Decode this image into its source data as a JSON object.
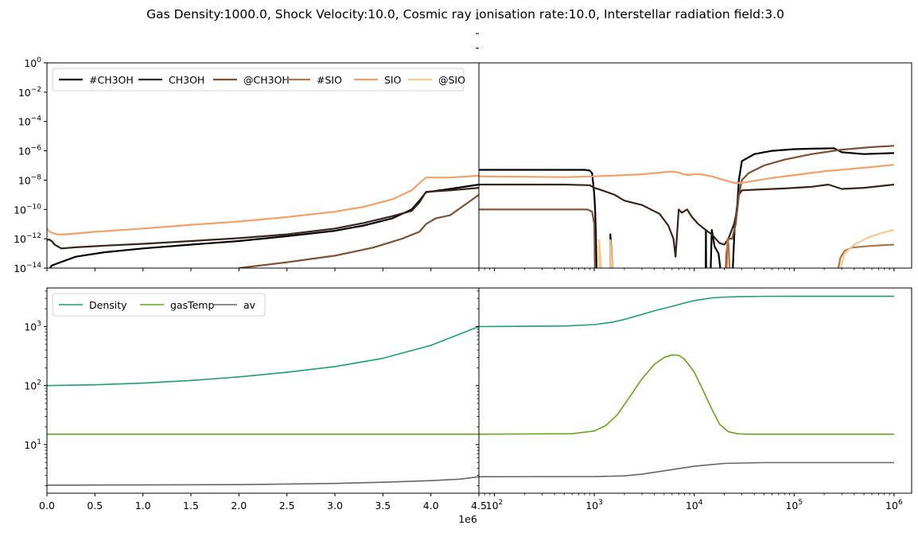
{
  "title": "Gas Density:1000.0, Shock Velocity:10.0, Cosmic ray ionisation rate:10.0, Interstellar radiation field:3.0",
  "chart_data": [
    {
      "id": "abundance-left",
      "type": "line",
      "x_scale": "linear",
      "y_scale": "log",
      "xlim": [
        0,
        4500000
      ],
      "ylim": [
        1e-14,
        1
      ],
      "x_offset_label": "1e6",
      "x_ticks": [
        0,
        500000,
        1000000,
        1500000,
        2000000,
        2500000,
        3000000,
        3500000,
        4000000,
        4500000
      ],
      "x_tick_labels": [
        "0.0",
        "0.5",
        "1.0",
        "1.5",
        "2.0",
        "2.5",
        "3.0",
        "3.5",
        "4.0",
        "4.5"
      ],
      "y_ticks": [
        1e-14,
        1e-12,
        1e-10,
        1e-08,
        1e-06,
        0.0001,
        0.01,
        1
      ],
      "y_tick_labels": [
        [
          "10",
          "−14"
        ],
        [
          "10",
          "−12"
        ],
        [
          "10",
          "−10"
        ],
        [
          "10",
          "−8"
        ],
        [
          "10",
          "−6"
        ],
        [
          "10",
          "−4"
        ],
        [
          "10",
          "−2"
        ],
        [
          "10",
          "0"
        ]
      ],
      "legend": {
        "placement": "upper-left",
        "ncol": 6
      },
      "series": [
        {
          "name": "#CH3OH",
          "color": "#000000",
          "x": [
            0,
            50000,
            100000,
            300000,
            600000,
            1000000,
            1500000,
            2000000,
            2500000,
            3000000,
            3300000,
            3600000,
            3800000,
            3880000,
            3950000,
            4200000,
            4500000
          ],
          "y": [
            5e-15,
            1.5e-14,
            2e-14,
            6e-14,
            1.2e-13,
            2.2e-13,
            4e-13,
            7e-13,
            1.5e-12,
            3.5e-12,
            8e-12,
            2.5e-11,
            1e-10,
            4e-10,
            1.5e-09,
            2.5e-09,
            5e-09
          ]
        },
        {
          "name": "CH3OH",
          "color": "#3a2418",
          "x": [
            0,
            20000,
            50000,
            80000,
            150000,
            300000,
            600000,
            1000000,
            1500000,
            2000000,
            2500000,
            3000000,
            3300000,
            3600000,
            3800000,
            3880000,
            3950000,
            4200000,
            4500000
          ],
          "y": [
            8e-13,
            9e-13,
            7e-13,
            4e-13,
            2.2e-13,
            2.6e-13,
            3.4e-13,
            4.5e-13,
            7e-13,
            1.1e-12,
            2e-12,
            5e-12,
            1.2e-11,
            3.5e-11,
            8e-11,
            3e-10,
            1.6e-09,
            2e-09,
            3e-09
          ]
        },
        {
          "name": "@CH3OH",
          "color": "#7d5033",
          "x": [
            2000000,
            2500000,
            3000000,
            3400000,
            3700000,
            3880000,
            3950000,
            4050000,
            4200000,
            4500000
          ],
          "y": [
            1e-14,
            2.5e-14,
            7e-14,
            2.5e-13,
            1e-12,
            3e-12,
            1e-11,
            2.5e-11,
            4e-11,
            1e-09
          ]
        },
        {
          "name": "#SIO",
          "color": "#b37347",
          "x": [],
          "y": []
        },
        {
          "name": "SIO",
          "color": "#f2a066",
          "x": [
            0,
            30000,
            100000,
            200000,
            500000,
            1000000,
            1500000,
            2000000,
            2500000,
            3000000,
            3300000,
            3600000,
            3800000,
            3900000,
            3950000,
            4200000,
            4500000
          ],
          "y": [
            5e-12,
            3e-12,
            2e-12,
            2e-12,
            3e-12,
            5e-12,
            9e-12,
            1.5e-11,
            3e-11,
            7e-11,
            1.5e-10,
            5e-10,
            2e-09,
            8e-09,
            1.5e-08,
            1.5e-08,
            2e-08
          ]
        },
        {
          "name": "@SIO",
          "color": "#f7c98b",
          "x": [],
          "y": []
        }
      ]
    },
    {
      "id": "abundance-right",
      "type": "line",
      "x_scale": "log",
      "y_scale": "log",
      "xlim": [
        70,
        1500000
      ],
      "ylim": [
        1e-14,
        1
      ],
      "x_ticks": [
        100,
        1000,
        10000,
        100000,
        1000000
      ],
      "x_tick_labels": [
        [
          "10",
          "2"
        ],
        [
          "10",
          "3"
        ],
        [
          "10",
          "4"
        ],
        [
          "10",
          "5"
        ],
        [
          "10",
          "6"
        ]
      ],
      "series": [
        {
          "name": "#CH3OH",
          "color": "#000000",
          "x": [
            70,
            300,
            800,
            900,
            950,
            1000,
            1020,
            1040,
            1060
          ],
          "y": [
            5e-08,
            5e-08,
            5e-08,
            4.5e-08,
            3e-08,
            1e-09,
            1e-10,
            1e-12,
            1e-15
          ]
        },
        {
          "name": "#CH3OH",
          "color": "#000000",
          "x": [
            1450,
            1450,
            1550
          ],
          "y": [
            1e-15,
            2e-12,
            1e-15
          ]
        },
        {
          "name": "#CH3OH",
          "color": "#000000",
          "x": [
            13000,
            13100,
            13200
          ],
          "y": [
            1e-15,
            4e-12,
            1e-15
          ]
        },
        {
          "name": "#CH3OH",
          "color": "#000000",
          "x": [
            14500,
            15000,
            16000,
            17500,
            19000
          ],
          "y": [
            1e-15,
            4e-12,
            3e-13,
            1e-13,
            1e-15
          ]
        },
        {
          "name": "#CH3OH",
          "color": "#000000",
          "x": [
            24000,
            25500,
            27000,
            28000,
            30000,
            40000,
            60000,
            100000,
            150000,
            200000,
            250000,
            300000,
            500000,
            1000000
          ],
          "y": [
            1e-15,
            1e-11,
            2e-10,
            1e-08,
            2e-07,
            6e-07,
            1e-06,
            1.3e-06,
            1.4e-06,
            1.45e-06,
            1.5e-06,
            8e-07,
            6e-07,
            7e-07
          ]
        },
        {
          "name": "CH3OH",
          "color": "#3a2418",
          "x": [
            70,
            500,
            900,
            1000,
            1200,
            1600,
            2000,
            3000,
            4500,
            5500,
            6200,
            6500,
            6800,
            7000,
            7500,
            8500,
            9500,
            11000,
            13000,
            15000,
            18000,
            20000,
            22000,
            25000,
            27000,
            28000,
            30000,
            40000,
            80000,
            150000,
            220000,
            300000,
            500000,
            1000000
          ],
          "y": [
            5e-09,
            5e-09,
            4.5e-09,
            3e-09,
            2e-09,
            1e-09,
            4e-10,
            2e-10,
            5e-11,
            8e-12,
            1e-12,
            6e-14,
            5e-12,
            1e-10,
            6e-11,
            1e-10,
            3e-11,
            1e-11,
            4e-12,
            2e-12,
            5e-13,
            4e-13,
            1e-12,
            1e-11,
            1e-10,
            1e-09,
            2e-09,
            2.2e-09,
            2.7e-09,
            3.5e-09,
            5e-09,
            2.5e-09,
            3e-09,
            5e-09
          ]
        },
        {
          "name": "@CH3OH",
          "color": "#7d5033",
          "x": [
            70,
            500,
            850,
            950,
            1000,
            1010,
            1020
          ],
          "y": [
            1e-10,
            1e-10,
            1e-10,
            7e-11,
            1e-11,
            1e-13,
            1e-15
          ]
        },
        {
          "name": "@CH3OH",
          "color": "#7d5033",
          "x": [
            20500,
            21000,
            22000,
            24000,
            26000,
            28000,
            30000,
            35000,
            50000,
            80000,
            150000,
            300000,
            600000,
            1000000
          ],
          "y": [
            1e-15,
            1e-13,
            1e-12,
            1e-12,
            1e-11,
            1e-09,
            1e-08,
            3e-08,
            1e-07,
            2.5e-07,
            6e-07,
            1.2e-06,
            1.8e-06,
            2.2e-06
          ]
        },
        {
          "name": "#SIO",
          "color": "#b37347",
          "x": [
            21000,
            21500,
            22000,
            23000
          ],
          "y": [
            1e-15,
            1e-12,
            5e-13,
            1e-15
          ]
        },
        {
          "name": "#SIO",
          "color": "#b37347",
          "x": [
            260000,
            290000,
            320000,
            380000,
            500000,
            700000,
            1000000
          ],
          "y": [
            1e-15,
            5e-14,
            1.5e-13,
            2.5e-13,
            3e-13,
            3.5e-13,
            4e-13
          ]
        },
        {
          "name": "SIO",
          "color": "#f2a066",
          "x": [
            70,
            200,
            500,
            1000,
            2000,
            3000,
            4000,
            5000,
            6000,
            7000,
            8000,
            9000,
            10000,
            12000,
            15000,
            20000,
            25000,
            30000,
            40000,
            60000,
            100000,
            200000,
            500000,
            1000000
          ],
          "y": [
            1.8e-08,
            1.7e-08,
            1.6e-08,
            1.8e-08,
            2.2e-08,
            2.5e-08,
            3e-08,
            3.5e-08,
            3.8e-08,
            3.3e-08,
            2.4e-08,
            2.2e-08,
            2.6e-08,
            2.4e-08,
            1.8e-08,
            1e-08,
            6.5e-09,
            6.5e-09,
            9e-09,
            1.4e-08,
            2.2e-08,
            4e-08,
            7e-08,
            1.1e-07
          ]
        },
        {
          "name": "@SIO",
          "color": "#f7c98b",
          "x": [
            1120,
            1120,
            1200
          ],
          "y": [
            1e-15,
            8e-13,
            1e-15
          ]
        },
        {
          "name": "@SIO",
          "color": "#f7c98b",
          "x": [
            1450,
            1450,
            1550
          ],
          "y": [
            1e-15,
            8e-13,
            1e-15
          ]
        },
        {
          "name": "@SIO",
          "color": "#f7c98b",
          "x": [
            270000,
            320000,
            400000,
            550000,
            750000,
            1000000
          ],
          "y": [
            1e-15,
            1e-13,
            4e-13,
            1.2e-12,
            2.5e-12,
            4e-12
          ]
        }
      ]
    },
    {
      "id": "physics-left",
      "type": "line",
      "x_scale": "linear",
      "y_scale": "log",
      "xlim": [
        0,
        4500000
      ],
      "ylim": [
        1.5,
        4500
      ],
      "x_offset_label": "1e6",
      "x_ticks": [
        0,
        500000,
        1000000,
        1500000,
        2000000,
        2500000,
        3000000,
        3500000,
        4000000,
        4500000
      ],
      "x_tick_labels": [
        "0.0",
        "0.5",
        "1.0",
        "1.5",
        "2.0",
        "2.5",
        "3.0",
        "3.5",
        "4.0",
        "4.5"
      ],
      "y_ticks": [
        10,
        100,
        1000
      ],
      "y_tick_labels": [
        [
          "10",
          "1"
        ],
        [
          "10",
          "2"
        ],
        [
          "10",
          "3"
        ]
      ],
      "legend": {
        "placement": "upper-left",
        "ncol": 3
      },
      "series": [
        {
          "name": "Density",
          "color": "#1b9e77",
          "x": [
            0,
            500000,
            1000000,
            1500000,
            2000000,
            2500000,
            3000000,
            3500000,
            4000000,
            4500000
          ],
          "y": [
            100,
            103,
            110,
            122,
            140,
            168,
            210,
            290,
            480,
            1000
          ]
        },
        {
          "name": "gasTemp",
          "color": "#66a61e",
          "x": [
            0,
            4500000
          ],
          "y": [
            15,
            15
          ]
        },
        {
          "name": "av",
          "color": "#666666",
          "x": [
            0,
            1000000,
            2000000,
            3000000,
            3500000,
            4000000,
            4300000,
            4500000
          ],
          "y": [
            2.05,
            2.07,
            2.1,
            2.2,
            2.3,
            2.45,
            2.6,
            2.85
          ]
        }
      ]
    },
    {
      "id": "physics-right",
      "type": "line",
      "x_scale": "log",
      "y_scale": "log",
      "xlim": [
        70,
        1500000
      ],
      "ylim": [
        1.5,
        4500
      ],
      "x_ticks": [
        100,
        1000,
        10000,
        100000,
        1000000
      ],
      "x_tick_labels": [
        [
          "10",
          "2"
        ],
        [
          "10",
          "3"
        ],
        [
          "10",
          "4"
        ],
        [
          "10",
          "5"
        ],
        [
          "10",
          "6"
        ]
      ],
      "series": [
        {
          "name": "Density",
          "color": "#1b9e77",
          "x": [
            70,
            500,
            1000,
            1500,
            2000,
            3000,
            4000,
            6000,
            8000,
            10000,
            15000,
            20000,
            30000,
            50000,
            100000,
            1000000
          ],
          "y": [
            1000,
            1020,
            1080,
            1180,
            1320,
            1600,
            1850,
            2200,
            2500,
            2750,
            3050,
            3150,
            3220,
            3250,
            3260,
            3260
          ]
        },
        {
          "name": "gasTemp",
          "color": "#66a61e",
          "x": [
            70,
            600,
            1000,
            1300,
            1700,
            2200,
            3000,
            4000,
            5000,
            6000,
            7000,
            8000,
            10000,
            12000,
            15000,
            18000,
            22000,
            27000,
            35000,
            50000,
            1000000
          ],
          "y": [
            15,
            15.3,
            17,
            21,
            32,
            60,
            130,
            230,
            300,
            330,
            325,
            280,
            170,
            90,
            40,
            22,
            16.5,
            15.3,
            15,
            15,
            15
          ]
        },
        {
          "name": "av",
          "color": "#666666",
          "x": [
            70,
            1000,
            2000,
            3000,
            5000,
            10000,
            20000,
            50000,
            100000,
            1000000
          ],
          "y": [
            2.85,
            2.87,
            2.95,
            3.15,
            3.6,
            4.3,
            4.8,
            4.95,
            4.95,
            4.95
          ]
        }
      ]
    }
  ]
}
